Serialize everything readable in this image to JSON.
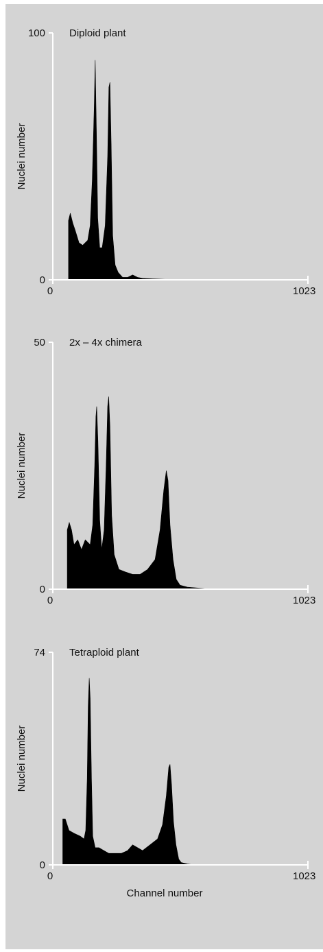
{
  "colors": {
    "background": "#d4d4d4",
    "axis": "#ffffff",
    "fill": "#000000",
    "text": "#111111"
  },
  "chart_data": [
    {
      "type": "area",
      "title": "Diploid plant",
      "ylabel": "Nuclei number",
      "xlabel": "",
      "xlim": [
        0,
        1023
      ],
      "ylim": [
        0,
        100
      ],
      "x_tick_labels": [
        "0",
        "1023"
      ],
      "y_tick_labels": [
        "0",
        "100"
      ],
      "grid": false,
      "series": [
        {
          "values": [
            [
              63,
              0
            ],
            [
              63,
              24
            ],
            [
              70,
              27
            ],
            [
              80,
              23
            ],
            [
              90,
              20
            ],
            [
              105,
              15
            ],
            [
              120,
              14
            ],
            [
              140,
              16
            ],
            [
              150,
              22
            ],
            [
              158,
              40
            ],
            [
              166,
              70
            ],
            [
              170,
              89
            ],
            [
              175,
              60
            ],
            [
              180,
              25
            ],
            [
              188,
              13
            ],
            [
              198,
              13
            ],
            [
              210,
              22
            ],
            [
              220,
              50
            ],
            [
              225,
              78
            ],
            [
              229,
              80
            ],
            [
              234,
              55
            ],
            [
              240,
              18
            ],
            [
              250,
              6
            ],
            [
              262,
              3
            ],
            [
              280,
              1
            ],
            [
              300,
              1
            ],
            [
              320,
              2
            ],
            [
              340,
              1
            ],
            [
              360,
              0.6
            ],
            [
              400,
              0.4
            ],
            [
              450,
              0.2
            ],
            [
              480,
              0
            ]
          ]
        }
      ]
    },
    {
      "type": "area",
      "title": "2x – 4x chimera",
      "ylabel": "Nuclei number",
      "xlabel": "",
      "xlim": [
        0,
        1023
      ],
      "ylim": [
        0,
        50
      ],
      "x_tick_labels": [
        "0",
        "1023"
      ],
      "y_tick_labels": [
        "0",
        "50"
      ],
      "grid": false,
      "series": [
        {
          "values": [
            [
              58,
              0
            ],
            [
              58,
              12
            ],
            [
              66,
              13.5
            ],
            [
              75,
              12
            ],
            [
              85,
              9
            ],
            [
              100,
              10
            ],
            [
              115,
              8
            ],
            [
              130,
              10
            ],
            [
              150,
              9
            ],
            [
              160,
              13
            ],
            [
              168,
              25
            ],
            [
              173,
              35
            ],
            [
              176,
              37
            ],
            [
              181,
              30
            ],
            [
              188,
              14
            ],
            [
              196,
              8
            ],
            [
              206,
              12
            ],
            [
              214,
              25
            ],
            [
              220,
              37
            ],
            [
              224,
              39
            ],
            [
              229,
              33
            ],
            [
              236,
              15
            ],
            [
              246,
              7
            ],
            [
              265,
              4
            ],
            [
              290,
              3.5
            ],
            [
              320,
              3
            ],
            [
              350,
              3
            ],
            [
              380,
              4
            ],
            [
              410,
              6
            ],
            [
              430,
              12
            ],
            [
              445,
              20
            ],
            [
              455,
              24
            ],
            [
              462,
              22
            ],
            [
              470,
              13
            ],
            [
              482,
              6
            ],
            [
              495,
              2
            ],
            [
              510,
              0.8
            ],
            [
              540,
              0.4
            ],
            [
              590,
              0.2
            ],
            [
              630,
              0
            ]
          ]
        }
      ]
    },
    {
      "type": "area",
      "title": "Tetraploid plant",
      "ylabel": "Nuclei number",
      "xlabel": "Channel number",
      "xlim": [
        0,
        1023
      ],
      "ylim": [
        0,
        74
      ],
      "x_tick_labels": [
        "0",
        "1023"
      ],
      "y_tick_labels": [
        "0",
        "74"
      ],
      "grid": false,
      "series": [
        {
          "values": [
            [
              40,
              0
            ],
            [
              40,
              16
            ],
            [
              50,
              16
            ],
            [
              65,
              12
            ],
            [
              85,
              11
            ],
            [
              110,
              10
            ],
            [
              125,
              9
            ],
            [
              132,
              12
            ],
            [
              138,
              30
            ],
            [
              142,
              55
            ],
            [
              146,
              65
            ],
            [
              150,
              58
            ],
            [
              155,
              30
            ],
            [
              160,
              10
            ],
            [
              170,
              6
            ],
            [
              185,
              6
            ],
            [
              205,
              5
            ],
            [
              225,
              4
            ],
            [
              255,
              4
            ],
            [
              275,
              4
            ],
            [
              300,
              5
            ],
            [
              320,
              7
            ],
            [
              340,
              6
            ],
            [
              360,
              5
            ],
            [
              390,
              7
            ],
            [
              420,
              9
            ],
            [
              440,
              14
            ],
            [
              455,
              24
            ],
            [
              465,
              34
            ],
            [
              470,
              35
            ],
            [
              476,
              28
            ],
            [
              484,
              15
            ],
            [
              494,
              7
            ],
            [
              505,
              2
            ],
            [
              515,
              0.8
            ],
            [
              540,
              0.3
            ],
            [
              570,
              0
            ]
          ]
        }
      ]
    }
  ]
}
